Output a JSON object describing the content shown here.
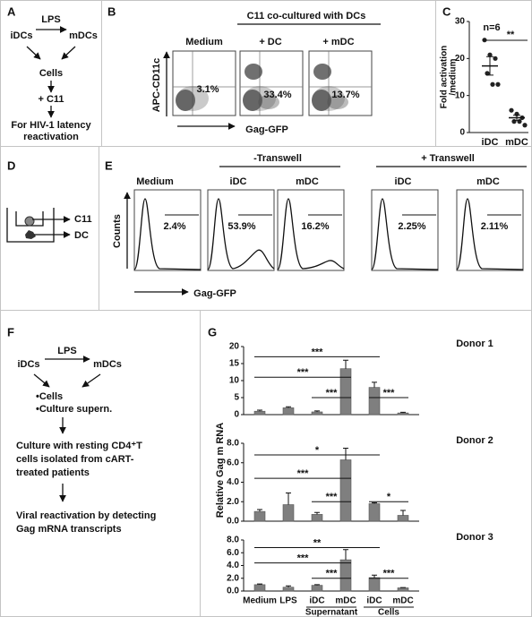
{
  "panels": {
    "A": {
      "label": "A",
      "lps": "LPS",
      "from": "iDCs",
      "to": "mDCs",
      "cells": "Cells",
      "treatment": "+ C11",
      "outcome": [
        "For HIV-1 latency",
        "reactivation"
      ]
    },
    "B": {
      "label": "B",
      "header": "C11 co-cultured with DCs",
      "conditions": [
        "Medium",
        "+ DC",
        "+ mDC"
      ],
      "percents": [
        "3.1%",
        "33.4%",
        "13.7%"
      ],
      "y_label": "APC-CD11c",
      "x_label": "Gag-GFP"
    },
    "C": {
      "label": "C"
    },
    "D": {
      "label": "D",
      "top": "C11",
      "bottom": "DC"
    },
    "E": {
      "label": "E",
      "headers": [
        "-Transwell",
        "+ Transwell"
      ],
      "conditions": [
        "Medium",
        "iDC",
        "mDC",
        "iDC",
        "mDC"
      ],
      "percents": [
        "2.4%",
        "53.9%",
        "16.2%",
        "2.25%",
        "2.11%"
      ],
      "y_label": "Counts",
      "x_label": "Gag-GFP"
    },
    "F": {
      "label": "F",
      "lps": "LPS",
      "from": "iDCs",
      "to": "mDCs",
      "items": [
        "•Cells",
        "•Culture supern."
      ],
      "culture": [
        "Culture with  resting CD4⁺T",
        "cells isolated from cART-",
        "treated patients"
      ],
      "readout": [
        "Viral reactivation by detecting",
        "Gag mRNA  transcripts"
      ]
    },
    "G": {
      "label": "G"
    }
  },
  "chart_data": [
    {
      "type": "dot",
      "categories": [
        "iDC",
        "mDC"
      ],
      "points": [
        [
          25,
          21,
          20,
          16,
          13,
          13
        ],
        [
          6,
          5,
          4,
          3,
          3,
          2
        ]
      ],
      "means": [
        18,
        4
      ],
      "errors": [
        2.5,
        0.7
      ],
      "ylim": [
        0,
        30
      ],
      "yticks": [
        0,
        10,
        20,
        30
      ],
      "y_label": [
        "Fold activation",
        "/medium"
      ],
      "annotation": "n=6",
      "significance": "**",
      "color": "#222222"
    },
    {
      "type": "bar",
      "y_label": "Relative Gag m RNA",
      "color": "#7f7f7f",
      "categories": [
        "Medium",
        "LPS",
        "iDC",
        "mDC",
        "iDC",
        "mDC"
      ],
      "groups": [
        {
          "label": "Supernatant",
          "span": [
            2,
            3
          ]
        },
        {
          "label": "Cells",
          "span": [
            4,
            5
          ]
        }
      ],
      "subplots": [
        {
          "title": "Donor 1",
          "values": [
            1,
            2,
            0.8,
            13.5,
            8,
            0.5
          ],
          "errors": [
            0.3,
            0.3,
            0.3,
            2.5,
            1.5,
            0.2
          ],
          "ylim": [
            0,
            20
          ],
          "yticks": [
            0,
            5,
            10,
            15,
            20
          ],
          "brackets": [
            {
              "from": 2,
              "to": 3,
              "label": "***"
            },
            {
              "from": 4,
              "to": 5,
              "label": "***"
            },
            {
              "from": 0,
              "to": 3,
              "label": "***"
            },
            {
              "from": 0,
              "to": 4,
              "label": "***"
            }
          ]
        },
        {
          "title": "Donor 2",
          "values": [
            1,
            1.7,
            0.7,
            6.3,
            1.8,
            0.6
          ],
          "errors": [
            0.2,
            1.2,
            0.2,
            1.2,
            0.1,
            0.5
          ],
          "ylim": [
            0,
            8
          ],
          "yticks": [
            {
              "value": 0,
              "label": "0.0"
            },
            {
              "value": 2,
              "label": "2.0"
            },
            {
              "value": 4,
              "label": "4.0"
            },
            {
              "value": 6,
              "label": "6.0"
            },
            {
              "value": 8,
              "label": "8.0"
            }
          ],
          "brackets": [
            {
              "from": 2,
              "to": 3,
              "label": "***"
            },
            {
              "from": 4,
              "to": 5,
              "label": "*"
            },
            {
              "from": 0,
              "to": 3,
              "label": "***"
            },
            {
              "from": 0,
              "to": 4,
              "label": "*"
            }
          ]
        },
        {
          "title": "Donor 3",
          "values": [
            1,
            0.6,
            0.9,
            4.9,
            2.1,
            0.5
          ],
          "errors": [
            0.1,
            0.2,
            0.1,
            1.6,
            0.4,
            0.05
          ],
          "ylim": [
            0,
            8
          ],
          "yticks": [
            {
              "value": 0,
              "label": "0.0"
            },
            {
              "value": 2,
              "label": "2.0"
            },
            {
              "value": 4,
              "label": "4.0"
            },
            {
              "value": 6,
              "label": "6.0"
            },
            {
              "value": 8,
              "label": "8.0"
            }
          ],
          "brackets": [
            {
              "from": 2,
              "to": 3,
              "label": "***"
            },
            {
              "from": 4,
              "to": 5,
              "label": "***"
            },
            {
              "from": 0,
              "to": 3,
              "label": "***"
            },
            {
              "from": 0,
              "to": 4,
              "label": "**"
            }
          ]
        }
      ]
    }
  ]
}
